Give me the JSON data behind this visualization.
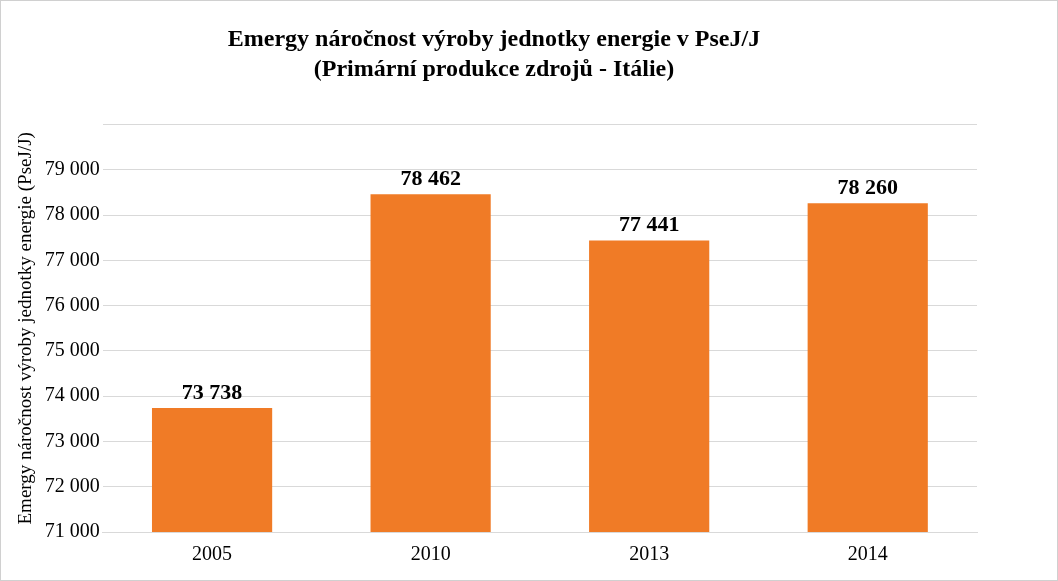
{
  "chart_data": {
    "type": "bar",
    "title": "Emergy náročnost výroby jednotky energie v PseJ/J",
    "subtitle": "(Primární produkce zdrojů - Itálie)",
    "ylabel": "Emergy náročnost výroby jednotky energie (PseJ/J)",
    "categories": [
      "2005",
      "2010",
      "2013",
      "2014"
    ],
    "values": [
      73738,
      78462,
      77441,
      78260
    ],
    "value_labels": [
      "73 738",
      "78 462",
      "77 441",
      "78 260"
    ],
    "color": "#f07b26",
    "ylim": [
      71000,
      80000
    ],
    "yticks": [
      {
        "value": 71000,
        "label": "71 000"
      },
      {
        "value": 72000,
        "label": "72 000"
      },
      {
        "value": 73000,
        "label": "73 000"
      },
      {
        "value": 74000,
        "label": "74 000"
      },
      {
        "value": 75000,
        "label": "75 000"
      },
      {
        "value": 76000,
        "label": "76 000"
      },
      {
        "value": 77000,
        "label": "77 000"
      },
      {
        "value": 78000,
        "label": "78 000"
      },
      {
        "value": 79000,
        "label": "79 000"
      },
      {
        "value": 80000,
        "label": null
      }
    ],
    "grid": "y",
    "legend": false
  }
}
